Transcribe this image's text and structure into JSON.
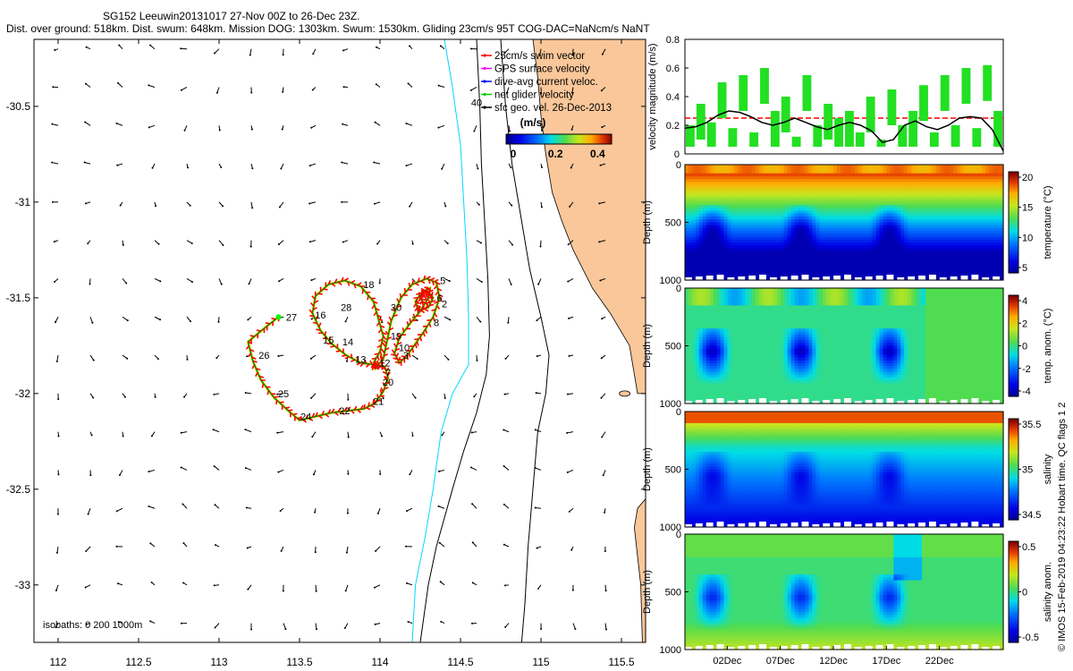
{
  "header": {
    "line1": "SG152 Leeuwin20131017 27-Nov 00Z to 26-Dec 23Z.",
    "line2": "Dist. over ground: 518km. Dist. swum: 648km. Mission DOG: 1303km. Swum: 1530km. Gliding 23cm/s 95T COG-DAC=NaNcm/s NaNT"
  },
  "chart_data": [
    {
      "type": "map",
      "name": "glider-track-map",
      "xlim": [
        111.85,
        115.65
      ],
      "ylim": [
        -33.3,
        -30.15
      ],
      "xticks": [
        "112",
        "112.5",
        "113",
        "113.5",
        "114",
        "114.5",
        "115",
        "115.5"
      ],
      "yticks": [
        "-30.5",
        "-31",
        "-31.5",
        "-32",
        "-32.5",
        "-33"
      ],
      "isobath_label": "isobaths: 0   200  1000m",
      "legend": [
        {
          "label": "25cm/s swim vector",
          "color": "#ff0000"
        },
        {
          "label": "GPS surface velocity",
          "color": "#ff00ff"
        },
        {
          "label": "dive-avg current veloc.",
          "color": "#0000ff"
        },
        {
          "label": "net glider velocity",
          "color": "#00cc00"
        },
        {
          "label": "sfc geo. vel. 26-Dec-2013",
          "color": "#000000"
        }
      ],
      "colorbar": {
        "title": "(m/s)",
        "ticks": [
          "0",
          "0.2",
          "0.4"
        ],
        "range": [
          0,
          0.5
        ]
      },
      "day_labels": [
        {
          "t": "40",
          "lon": 114.6,
          "lat": -30.48
        },
        {
          "t": "5",
          "lon": 114.39,
          "lat": -31.41
        },
        {
          "t": "6",
          "lon": 114.37,
          "lat": -31.5
        },
        {
          "t": "2",
          "lon": 114.4,
          "lat": -31.53
        },
        {
          "t": "8",
          "lon": 114.35,
          "lat": -31.63
        },
        {
          "t": "18",
          "lon": 113.93,
          "lat": -31.43
        },
        {
          "t": "28",
          "lon": 113.79,
          "lat": -31.55
        },
        {
          "t": "30",
          "lon": 114.1,
          "lat": -31.55
        },
        {
          "t": "27",
          "lon": 113.45,
          "lat": -31.6
        },
        {
          "t": "16",
          "lon": 113.63,
          "lat": -31.59
        },
        {
          "t": "19",
          "lon": 114.1,
          "lat": -31.7
        },
        {
          "t": "15",
          "lon": 113.68,
          "lat": -31.72
        },
        {
          "t": "14",
          "lon": 113.8,
          "lat": -31.73
        },
        {
          "t": "10",
          "lon": 114.15,
          "lat": -31.76
        },
        {
          "t": "26",
          "lon": 113.28,
          "lat": -31.8
        },
        {
          "t": "13",
          "lon": 113.88,
          "lat": -31.82
        },
        {
          "t": "3",
          "lon": 114.16,
          "lat": -31.8
        },
        {
          "t": "12",
          "lon": 114.03,
          "lat": -31.84
        },
        {
          "t": "7",
          "lon": 114.05,
          "lat": -31.89
        },
        {
          "t": "20",
          "lon": 114.05,
          "lat": -31.94
        },
        {
          "t": "25",
          "lon": 113.4,
          "lat": -32.0
        },
        {
          "t": "21",
          "lon": 113.99,
          "lat": -32.04
        },
        {
          "t": "22",
          "lon": 113.78,
          "lat": -32.09
        },
        {
          "t": "24",
          "lon": 113.54,
          "lat": -32.12
        }
      ],
      "track": [
        [
          113.37,
          -31.6
        ],
        [
          113.28,
          -31.66
        ],
        [
          113.18,
          -31.73
        ],
        [
          113.21,
          -31.83
        ],
        [
          113.26,
          -31.93
        ],
        [
          113.34,
          -32.02
        ],
        [
          113.43,
          -32.09
        ],
        [
          113.5,
          -32.14
        ],
        [
          113.6,
          -32.12
        ],
        [
          113.7,
          -32.1
        ],
        [
          113.8,
          -32.09
        ],
        [
          113.9,
          -32.08
        ],
        [
          113.97,
          -32.05
        ],
        [
          114.02,
          -31.99
        ],
        [
          114.05,
          -31.92
        ],
        [
          114.03,
          -31.86
        ],
        [
          113.97,
          -31.85
        ],
        [
          113.88,
          -31.84
        ],
        [
          113.79,
          -31.8
        ],
        [
          113.7,
          -31.74
        ],
        [
          113.63,
          -31.67
        ],
        [
          113.58,
          -31.58
        ],
        [
          113.6,
          -31.49
        ],
        [
          113.68,
          -31.43
        ],
        [
          113.78,
          -31.41
        ],
        [
          113.88,
          -31.44
        ],
        [
          113.96,
          -31.52
        ],
        [
          113.99,
          -31.61
        ],
        [
          114.02,
          -31.7
        ],
        [
          114.0,
          -31.78
        ],
        [
          113.96,
          -31.84
        ],
        [
          113.97,
          -31.87
        ],
        [
          114.02,
          -31.82
        ],
        [
          114.04,
          -31.74
        ],
        [
          114.07,
          -31.62
        ],
        [
          114.13,
          -31.5
        ],
        [
          114.2,
          -31.43
        ],
        [
          114.29,
          -31.4
        ],
        [
          114.35,
          -31.42
        ],
        [
          114.37,
          -31.5
        ],
        [
          114.33,
          -31.6
        ],
        [
          114.27,
          -31.68
        ],
        [
          114.22,
          -31.74
        ],
        [
          114.17,
          -31.8
        ],
        [
          114.12,
          -31.84
        ],
        [
          114.09,
          -31.79
        ],
        [
          114.12,
          -31.71
        ],
        [
          114.19,
          -31.63
        ],
        [
          114.25,
          -31.57
        ],
        [
          114.3,
          -31.5
        ],
        [
          114.31,
          -31.45
        ],
        [
          114.26,
          -31.47
        ],
        [
          114.22,
          -31.52
        ],
        [
          114.24,
          -31.57
        ],
        [
          114.3,
          -31.55
        ],
        [
          114.33,
          -31.5
        ],
        [
          114.29,
          -31.46
        ],
        [
          114.25,
          -31.49
        ],
        [
          114.27,
          -31.53
        ]
      ],
      "glider_start": [
        113.37,
        -31.6
      ],
      "vector_grid": {
        "lon_start": 112.0,
        "lon_step": 0.2,
        "lon_count": 18,
        "lat_start": -30.2,
        "lat_step": 0.2,
        "lat_count": 16
      }
    },
    {
      "type": "line",
      "name": "velocity-panel",
      "ylabel": "velocity magnitude (m/s)",
      "yticks": [
        "0",
        "0.2",
        "0.4",
        "0.6",
        "0.8"
      ],
      "ylim": [
        0,
        0.8
      ],
      "xlim": [
        0,
        30
      ],
      "series": [
        {
          "color": "#ff0000",
          "values": [
            0.25,
            0.25,
            0.25,
            0.25,
            0.25,
            0.25,
            0.25,
            0.25,
            0.25,
            0.25,
            0.25,
            0.25,
            0.25,
            0.25,
            0.25,
            0.25,
            0.25,
            0.25,
            0.25,
            0.25,
            0.25,
            0.25,
            0.25,
            0.25,
            0.25,
            0.25,
            0.25,
            0.25,
            0.25,
            0.25
          ]
        },
        {
          "color": "#00ff00",
          "values": [
            0.2,
            0.35,
            0.22,
            0.5,
            0.18,
            0.55,
            0.15,
            0.6,
            0.3,
            0.4,
            0.12,
            0.55,
            0.2,
            0.35,
            0.25,
            0.3,
            0.15,
            0.4,
            0.1,
            0.45,
            0.2,
            0.3,
            0.48,
            0.15,
            0.55,
            0.2,
            0.6,
            0.18,
            0.62,
            0.3
          ]
        },
        {
          "color": "#000000",
          "values": [
            0.18,
            0.19,
            0.22,
            0.27,
            0.3,
            0.29,
            0.26,
            0.22,
            0.2,
            0.22,
            0.25,
            0.22,
            0.19,
            0.17,
            0.2,
            0.22,
            0.2,
            0.16,
            0.08,
            0.1,
            0.2,
            0.23,
            0.19,
            0.17,
            0.2,
            0.25,
            0.26,
            0.25,
            0.17,
            0.02
          ]
        }
      ]
    },
    {
      "type": "heatmap",
      "name": "temperature-section",
      "ylabel": "Depth (m)",
      "yticks": [
        "0",
        "500",
        "1000"
      ],
      "cblabel": "temperature (°C)",
      "cbticks": [
        "20",
        "15",
        "10",
        "5"
      ],
      "kind": "temp"
    },
    {
      "type": "heatmap",
      "name": "temp-anomaly-section",
      "ylabel": "Depth (m)",
      "yticks": [
        "0",
        "500",
        "1000"
      ],
      "cblabel": "temp. anom. (°C)",
      "cbticks": [
        "4",
        "2",
        "0",
        "-2",
        "-4"
      ],
      "kind": "tanom"
    },
    {
      "type": "heatmap",
      "name": "salinity-section",
      "ylabel": "Depth (m)",
      "yticks": [
        "0",
        "500",
        "1000"
      ],
      "cblabel": "salinity",
      "cbticks": [
        "35.5",
        "35",
        "34.5"
      ],
      "kind": "sal"
    },
    {
      "type": "heatmap",
      "name": "salinity-anomaly-section",
      "ylabel": "Depth (m)",
      "yticks": [
        "0",
        "500",
        "1000"
      ],
      "cblabel": "salinity anom.",
      "cbticks": [
        "0.5",
        "0",
        "-0.5"
      ],
      "kind": "sanom",
      "xticks": [
        "02Dec",
        "07Dec",
        "12Dec",
        "17Dec",
        "22Dec"
      ]
    }
  ],
  "footer": {
    "credit": "© IMOS 15-Feb-2019 04:23:22 Hobart time. QC flags 1  2"
  }
}
